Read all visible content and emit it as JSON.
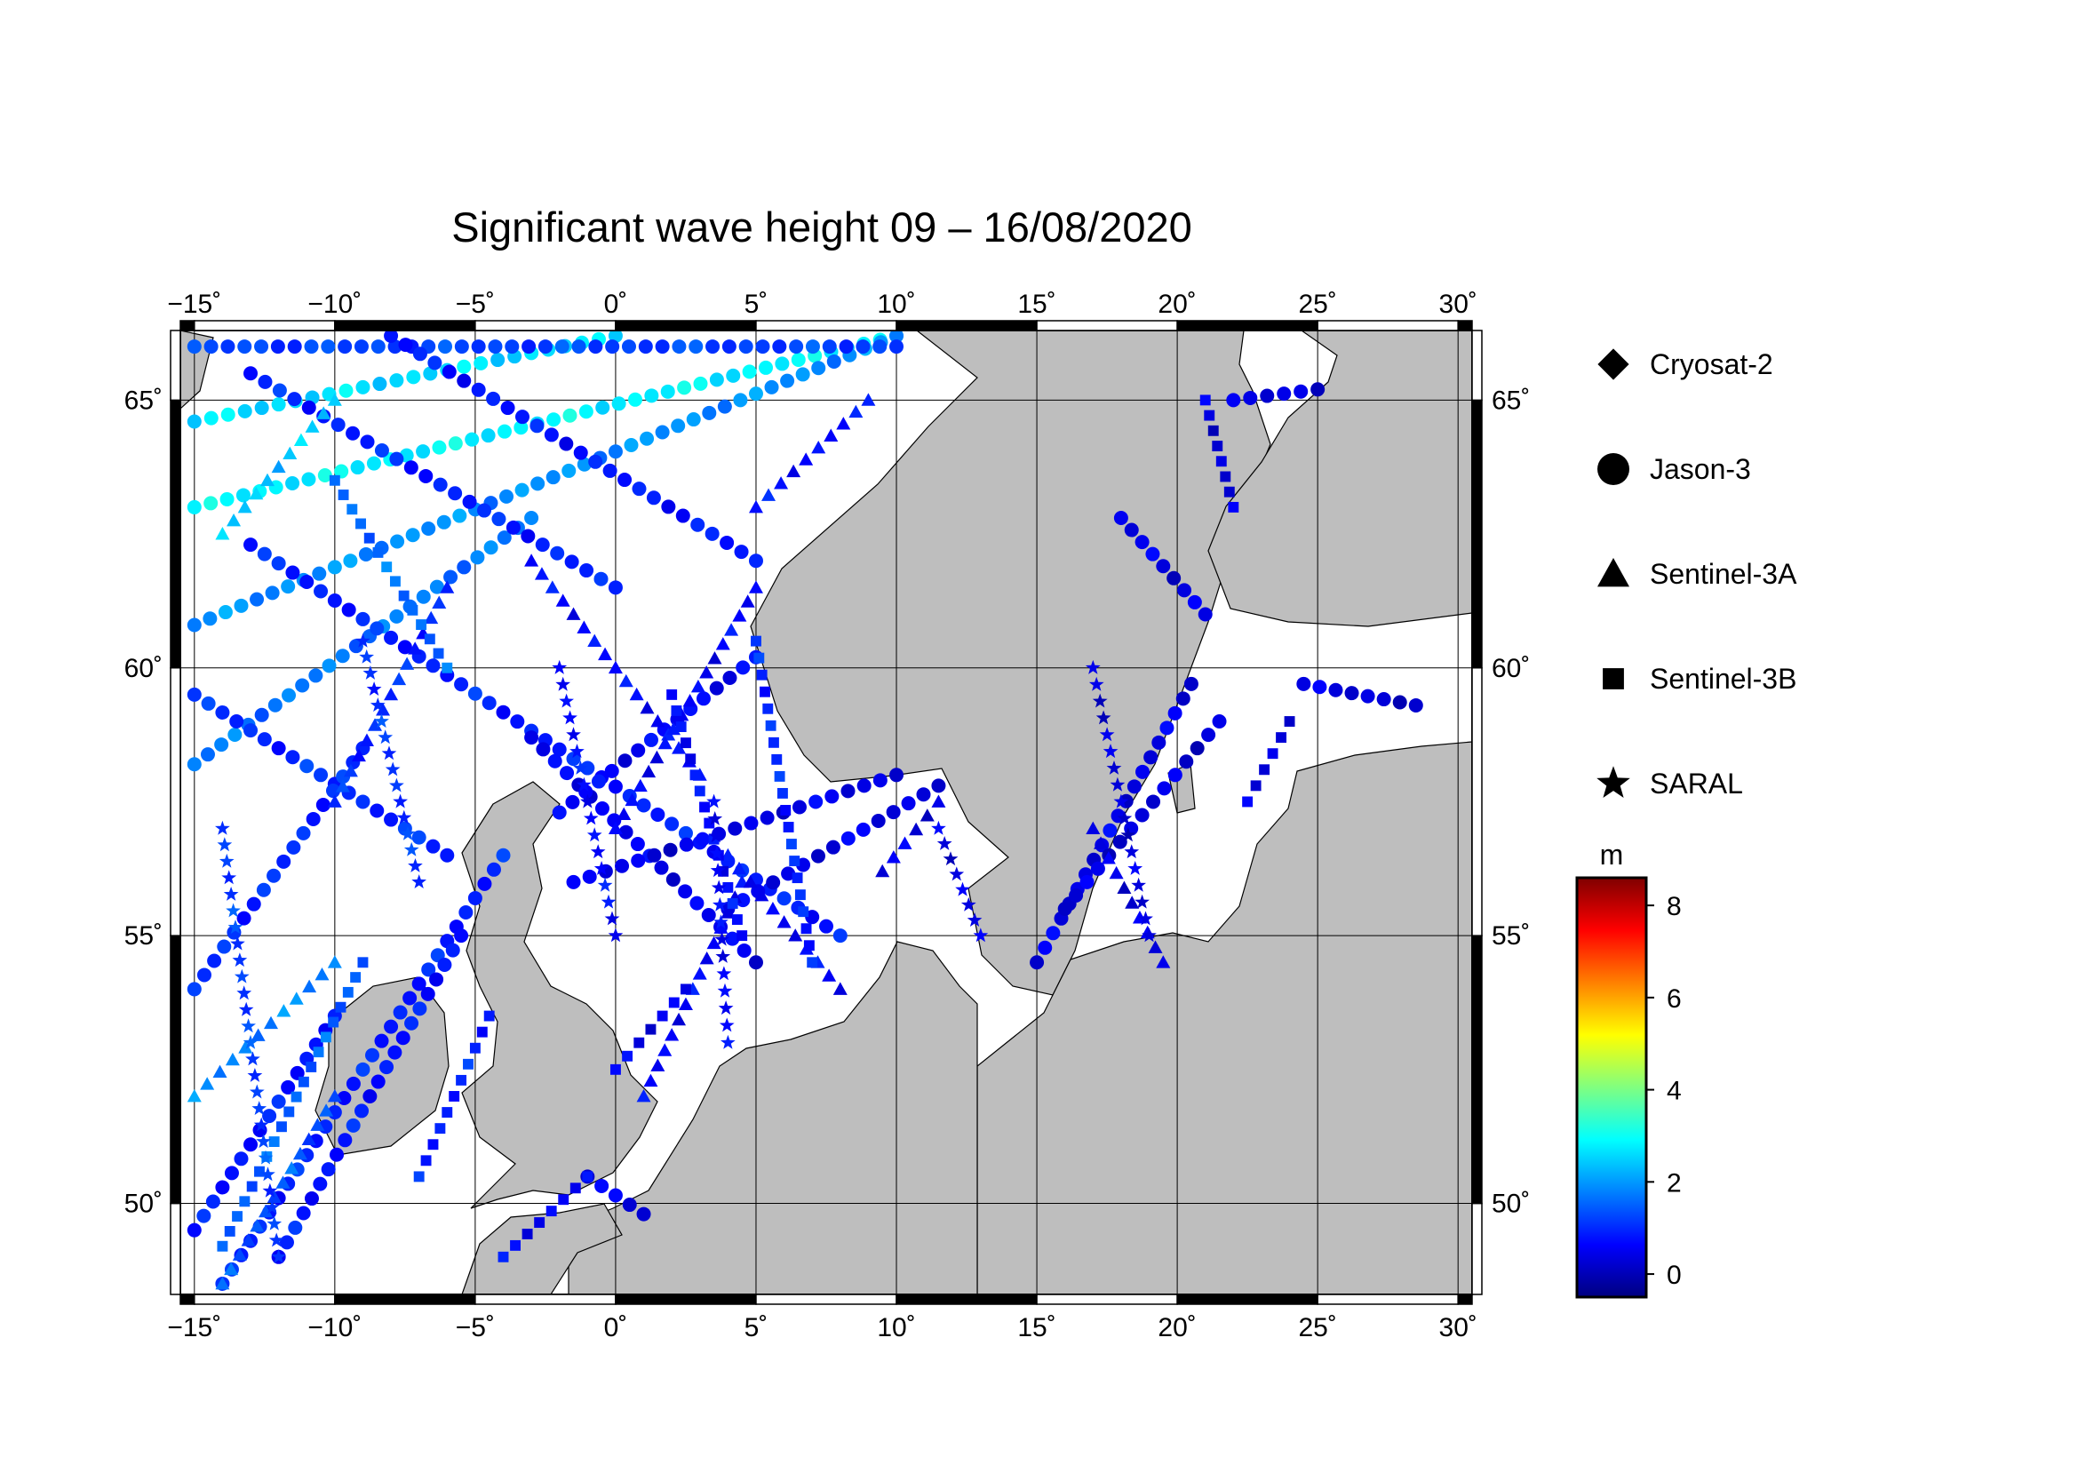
{
  "chart_data": {
    "type": "scatter",
    "title": "Significant wave height 09 – 16/08/2020",
    "xlim": [
      -15.5,
      30.5
    ],
    "ylim": [
      48.3,
      66.3
    ],
    "x_ticks": [
      -15,
      -10,
      -5,
      0,
      5,
      10,
      15,
      20,
      25,
      30
    ],
    "y_ticks": [
      50,
      55,
      60,
      65
    ],
    "x_tick_labels": [
      "−15˚",
      "−10˚",
      "−5˚",
      "0˚",
      "5˚",
      "10˚",
      "15˚",
      "20˚",
      "25˚",
      "30˚"
    ],
    "y_tick_labels": [
      "50˚",
      "55˚",
      "60˚",
      "65˚"
    ],
    "land_color": "#bebebe",
    "sea_color": "#ffffff",
    "grid": true,
    "legend": {
      "placement": "right",
      "entries": [
        {
          "name": "Cryosat-2",
          "marker": "diamond"
        },
        {
          "name": "Jason-3",
          "marker": "circle"
        },
        {
          "name": "Sentinel-3A",
          "marker": "triangle"
        },
        {
          "name": "Sentinel-3B",
          "marker": "square"
        },
        {
          "name": "SARAL",
          "marker": "star"
        }
      ]
    },
    "colorbar": {
      "unit": "m",
      "range": [
        -0.5,
        8.6
      ],
      "ticks": [
        0,
        2,
        4,
        6,
        8
      ],
      "tick_labels": [
        "0",
        "2",
        "4",
        "6",
        "8"
      ],
      "colors": [
        "#00007f",
        "#0000ff",
        "#0080ff",
        "#00ffff",
        "#80ff80",
        "#ffff00",
        "#ff8000",
        "#ff0000",
        "#7f0000"
      ]
    },
    "series": [
      {
        "name": "Jason-3",
        "marker": "circle",
        "tracks": [
          {
            "from": [
              -15,
              63.0
            ],
            "to": [
              10,
              66.2
            ],
            "swh": 2.8
          },
          {
            "from": [
              -15,
              64.6
            ],
            "to": [
              0,
              66.2
            ],
            "swh": 2.6
          },
          {
            "from": [
              -15,
              60.8
            ],
            "to": [
              10,
              66.2
            ],
            "swh": 1.9
          },
          {
            "from": [
              -15,
              58.2
            ],
            "to": [
              -3,
              62.8
            ],
            "swh": 1.7
          },
          {
            "from": [
              -15,
              66.0
            ],
            "to": [
              10,
              66.0
            ],
            "swh": 1.2
          },
          {
            "from": [
              -15,
              59.5
            ],
            "to": [
              -6,
              56.5
            ],
            "swh": 1.0
          },
          {
            "from": [
              -13,
              62.3
            ],
            "to": [
              8,
              55.0
            ],
            "swh": 0.9
          },
          {
            "from": [
              -13,
              65.5
            ],
            "to": [
              0,
              61.5
            ],
            "swh": 0.9
          },
          {
            "from": [
              -8,
              66.2
            ],
            "to": [
              5,
              62.0
            ],
            "swh": 0.8
          },
          {
            "from": [
              -15,
              54.0
            ],
            "to": [
              -9,
              58.5
            ],
            "swh": 1.0
          },
          {
            "from": [
              -14,
              48.5
            ],
            "to": [
              -4,
              56.5
            ],
            "swh": 0.9
          },
          {
            "from": [
              -15,
              49.5
            ],
            "to": [
              -10,
              53.5
            ],
            "swh": 0.8
          },
          {
            "from": [
              -12,
              49.0
            ],
            "to": [
              -5.5,
              55.0
            ],
            "swh": 0.8
          },
          {
            "from": [
              -3,
              58.7
            ],
            "to": [
              5,
              54.5
            ],
            "swh": 0.5
          },
          {
            "from": [
              -2,
              57.3
            ],
            "to": [
              5,
              60.2
            ],
            "swh": 0.6
          },
          {
            "from": [
              -1.5,
              56.0
            ],
            "to": [
              10,
              58.0
            ],
            "swh": 0.4
          },
          {
            "from": [
              4,
              55.5
            ],
            "to": [
              11.5,
              57.8
            ],
            "swh": 0.4
          },
          {
            "from": [
              15,
              54.5
            ],
            "to": [
              20.5,
              59.7
            ],
            "swh": 0.4
          },
          {
            "from": [
              16,
              55.5
            ],
            "to": [
              21.5,
              59.0
            ],
            "swh": 0.3
          },
          {
            "from": [
              18,
              62.8
            ],
            "to": [
              21,
              61.0
            ],
            "swh": 0.4
          },
          {
            "from": [
              22,
              65.0
            ],
            "to": [
              25,
              65.2
            ],
            "swh": 0.3
          },
          {
            "from": [
              24.5,
              59.7
            ],
            "to": [
              28.5,
              59.3
            ],
            "swh": 0.3
          },
          {
            "from": [
              -1,
              50.5
            ],
            "to": [
              1,
              49.8
            ],
            "swh": 0.4
          }
        ]
      },
      {
        "name": "Sentinel-3A",
        "marker": "triangle",
        "tracks": [
          {
            "from": [
              -15,
              52.0
            ],
            "to": [
              -10,
              54.5
            ],
            "swh": 1.8
          },
          {
            "from": [
              -14,
              48.5
            ],
            "to": [
              -10,
              52.0
            ],
            "swh": 1.4
          },
          {
            "from": [
              -10,
              57.5
            ],
            "to": [
              -6,
              61.5
            ],
            "swh": 1.0
          },
          {
            "from": [
              -3,
              62.0
            ],
            "to": [
              3,
              58.0
            ],
            "swh": 0.7
          },
          {
            "from": [
              0,
              57.0
            ],
            "to": [
              5,
              61.5
            ],
            "swh": 0.6
          },
          {
            "from": [
              1,
              52.0
            ],
            "to": [
              4.5,
              56.0
            ],
            "swh": 0.6
          },
          {
            "from": [
              4,
              56.5
            ],
            "to": [
              8,
              54.0
            ],
            "swh": 0.6
          },
          {
            "from": [
              5,
              63.0
            ],
            "to": [
              9,
              65.0
            ],
            "swh": 0.7
          },
          {
            "from": [
              9.5,
              56.2
            ],
            "to": [
              11.5,
              57.5
            ],
            "swh": 0.4
          },
          {
            "from": [
              17,
              57.0
            ],
            "to": [
              19.5,
              54.5
            ],
            "swh": 0.4
          },
          {
            "from": [
              -14,
              62.5
            ],
            "to": [
              -10,
              65.0
            ],
            "swh": 2.4
          }
        ]
      },
      {
        "name": "Sentinel-3B",
        "marker": "square",
        "tracks": [
          {
            "from": [
              -14,
              49.2
            ],
            "to": [
              -9,
              54.5
            ],
            "swh": 1.5
          },
          {
            "from": [
              -7,
              50.5
            ],
            "to": [
              -4.5,
              53.5
            ],
            "swh": 0.9
          },
          {
            "from": [
              -4,
              49.0
            ],
            "to": [
              -1,
              50.5
            ],
            "swh": 0.6
          },
          {
            "from": [
              5,
              60.5
            ],
            "to": [
              7,
              54.5
            ],
            "swh": 1.0
          },
          {
            "from": [
              2,
              59.5
            ],
            "to": [
              4.5,
              55.0
            ],
            "swh": 0.7
          },
          {
            "from": [
              -10,
              63.5
            ],
            "to": [
              -6,
              60.0
            ],
            "swh": 1.6
          },
          {
            "from": [
              22.5,
              57.5
            ],
            "to": [
              24,
              59.0
            ],
            "swh": 0.4
          },
          {
            "from": [
              21,
              65.0
            ],
            "to": [
              22,
              63.0
            ],
            "swh": 0.3
          },
          {
            "from": [
              0,
              52.5
            ],
            "to": [
              2.5,
              54.0
            ],
            "swh": 0.5
          }
        ]
      },
      {
        "name": "SARAL",
        "marker": "star",
        "tracks": [
          {
            "from": [
              -14,
              57.0
            ],
            "to": [
              -12,
              49.0
            ],
            "swh": 1.2
          },
          {
            "from": [
              -2,
              60.0
            ],
            "to": [
              0,
              55.0
            ],
            "swh": 0.7
          },
          {
            "from": [
              3.5,
              57.5
            ],
            "to": [
              4,
              53.0
            ],
            "swh": 0.6
          },
          {
            "from": [
              11.5,
              57.0
            ],
            "to": [
              13,
              55.0
            ],
            "swh": 0.4
          },
          {
            "from": [
              17,
              60.0
            ],
            "to": [
              19,
              55.0
            ],
            "swh": 0.3
          },
          {
            "from": [
              -9,
              60.5
            ],
            "to": [
              -7,
              56.0
            ],
            "swh": 1.1
          }
        ]
      },
      {
        "name": "Cryosat-2",
        "marker": "diamond",
        "tracks": []
      }
    ]
  }
}
